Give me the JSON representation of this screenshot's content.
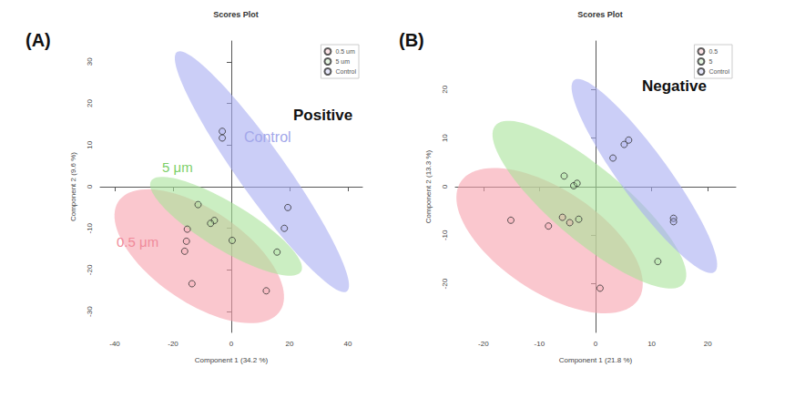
{
  "chart_data": [
    {
      "type": "scatter",
      "title": "Scores Plot",
      "panel_label": "(A)",
      "x_label": "Component 1 (34.2 %)",
      "y_label": "Component 2 (9.6 %)",
      "xlim": [
        -45,
        45
      ],
      "xticks": [
        -40,
        -20,
        0,
        20,
        40
      ],
      "ylim": [
        -35,
        35
      ],
      "yticks": [
        -30,
        -20,
        -10,
        0,
        10,
        20,
        30
      ],
      "grid": false,
      "legend": "upper right",
      "marker": "circle",
      "annotations": [
        {
          "text": "Positive",
          "color": "#111111"
        },
        {
          "text": "Control",
          "color": "#a3a7ea"
        },
        {
          "text": "5 μm",
          "color": "#7ccf68"
        },
        {
          "text": "0.5 μm",
          "color": "#f08a9a"
        }
      ],
      "series": [
        {
          "name": "0.5 um",
          "color": "#f7a1ae",
          "x": [
            -15.1,
            -15.4,
            -16.0,
            -13.5,
            12.0
          ],
          "y": [
            -10.2,
            -13.1,
            -15.5,
            -23.3,
            -25.0
          ],
          "ellipse": {
            "center": [
              -11.0,
              -16.7
            ],
            "radii": [
              31,
              12
            ],
            "angle": -22
          }
        },
        {
          "name": "5 um",
          "color": "#a8e29a",
          "x": [
            -11.4,
            -5.8,
            -7.1,
            0.3,
            15.7
          ],
          "y": [
            -4.3,
            -8.1,
            -8.8,
            -12.9,
            -15.7
          ],
          "ellipse": {
            "center": [
              -1.8,
              -9.5
            ],
            "radii": [
              28,
              6
            ],
            "angle": -22
          }
        },
        {
          "name": "Control",
          "color": "#a9aef2",
          "x": [
            -3.1,
            -3.1,
            19.4,
            18.2
          ],
          "y": [
            13.3,
            11.7,
            -5.0,
            -10.0
          ],
          "ellipse": {
            "center": [
              10.5,
              3.6
            ],
            "radii": [
              41,
              7
            ],
            "angle": -44
          }
        }
      ]
    },
    {
      "type": "scatter",
      "title": "Scores Plot",
      "panel_label": "(B)",
      "x_label": "Component 1 (21.8 %)",
      "y_label": "Component 2 (13.3 %)",
      "xlim": [
        -25,
        25
      ],
      "xticks": [
        -20,
        -10,
        0,
        10,
        20
      ],
      "ylim": [
        -30,
        30
      ],
      "yticks": [
        -20,
        -10,
        0,
        10,
        20
      ],
      "grid": false,
      "legend": "upper right",
      "marker": "circle",
      "annotations": [
        {
          "text": "Negative",
          "color": "#111111"
        }
      ],
      "series": [
        {
          "name": "0.5",
          "color": "#f7a1ae",
          "x": [
            -15.1,
            -8.4,
            -5.9,
            -4.6,
            0.8
          ],
          "y": [
            -6.9,
            -8.1,
            -6.3,
            -7.4,
            -20.9
          ],
          "ellipse": {
            "center": [
              -8.2,
              -11.1
            ],
            "radii": [
              20,
              10
            ],
            "angle": -40
          }
        },
        {
          "name": "5",
          "color": "#a8e29a",
          "x": [
            -5.6,
            -3.9,
            -3.3,
            -3.0,
            11.1
          ],
          "y": [
            2.2,
            0.2,
            0.7,
            -6.7,
            -15.4
          ],
          "ellipse": {
            "center": [
              -1.1,
              -3.7
            ],
            "radii": [
              23.4,
              7
            ],
            "angle": -45
          }
        },
        {
          "name": "Control",
          "color": "#a9aef2",
          "x": [
            5.1,
            5.9,
            3.1,
            13.9,
            13.9
          ],
          "y": [
            8.7,
            9.6,
            5.9,
            -6.5,
            -7.2
          ],
          "ellipse": {
            "center": [
              8.7,
              2.2
            ],
            "radii": [
              23.4,
              4.5
            ],
            "angle": -58
          }
        }
      ]
    }
  ]
}
